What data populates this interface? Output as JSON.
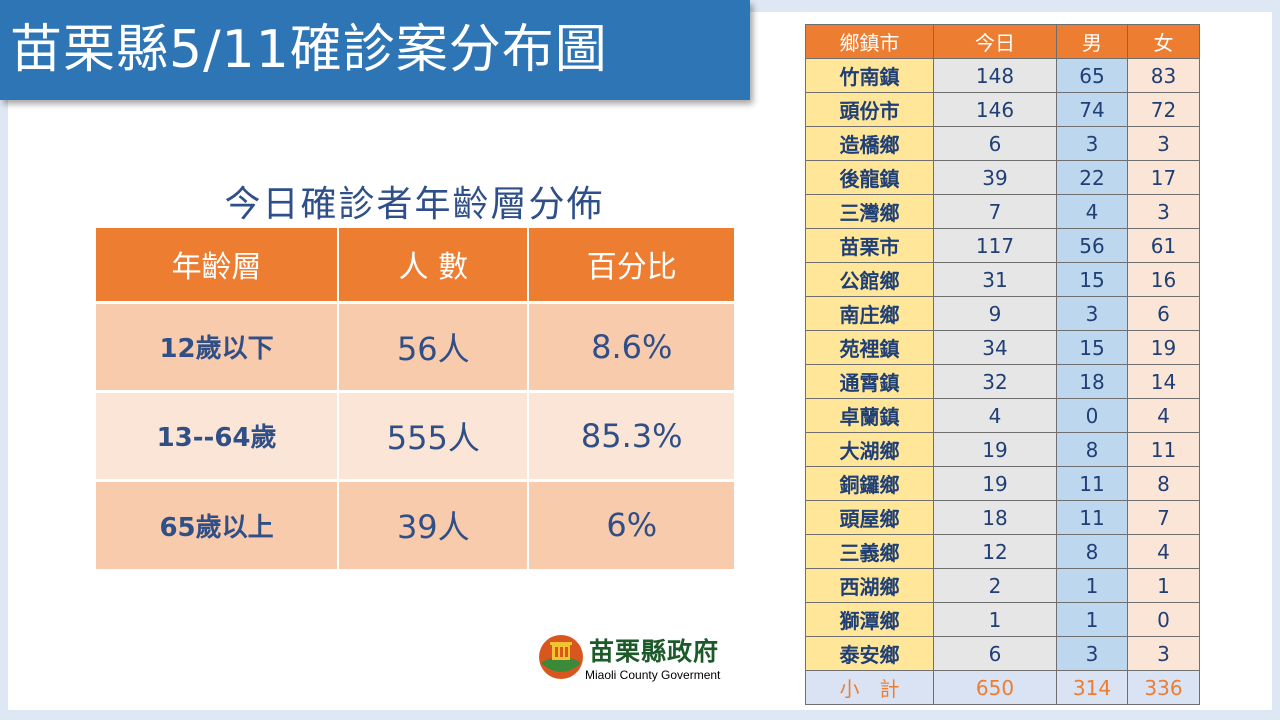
{
  "title": "苗栗縣5/11確診案分布圖",
  "age_section": {
    "heading": "今日確診者年齡層分佈",
    "headers": [
      "年齡層",
      "人 數",
      "百分比"
    ],
    "rows": [
      {
        "group": "12歲以下",
        "count": "56人",
        "percent": "8.6%"
      },
      {
        "group": "13--64歲",
        "count": "555人",
        "percent": "85.3%"
      },
      {
        "group": "65歲以上",
        "count": "39人",
        "percent": "6%"
      }
    ]
  },
  "logo": {
    "name_cn": "苗栗縣政府",
    "name_en": "Miaoli County Goverment"
  },
  "town_table": {
    "headers": [
      "鄉鎮市",
      "今日",
      "男",
      "女"
    ],
    "rows": [
      {
        "town": "竹南鎮",
        "today": "148",
        "male": "65",
        "female": "83"
      },
      {
        "town": "頭份市",
        "today": "146",
        "male": "74",
        "female": "72"
      },
      {
        "town": "造橋鄉",
        "today": "6",
        "male": "3",
        "female": "3"
      },
      {
        "town": "後龍鎮",
        "today": "39",
        "male": "22",
        "female": "17"
      },
      {
        "town": "三灣鄉",
        "today": "7",
        "male": "4",
        "female": "3"
      },
      {
        "town": "苗栗市",
        "today": "117",
        "male": "56",
        "female": "61"
      },
      {
        "town": "公館鄉",
        "today": "31",
        "male": "15",
        "female": "16"
      },
      {
        "town": "南庄鄉",
        "today": "9",
        "male": "3",
        "female": "6"
      },
      {
        "town": "苑裡鎮",
        "today": "34",
        "male": "15",
        "female": "19"
      },
      {
        "town": "通霄鎮",
        "today": "32",
        "male": "18",
        "female": "14"
      },
      {
        "town": "卓蘭鎮",
        "today": "4",
        "male": "0",
        "female": "4"
      },
      {
        "town": "大湖鄉",
        "today": "19",
        "male": "8",
        "female": "11"
      },
      {
        "town": "銅鑼鄉",
        "today": "19",
        "male": "11",
        "female": "8"
      },
      {
        "town": "頭屋鄉",
        "today": "18",
        "male": "11",
        "female": "7"
      },
      {
        "town": "三義鄉",
        "today": "12",
        "male": "8",
        "female": "4"
      },
      {
        "town": "西湖鄉",
        "today": "2",
        "male": "1",
        "female": "1"
      },
      {
        "town": "獅潭鄉",
        "today": "1",
        "male": "1",
        "female": "0"
      },
      {
        "town": "泰安鄉",
        "today": "6",
        "male": "3",
        "female": "3"
      }
    ],
    "total": {
      "town": "小計",
      "today": "650",
      "male": "314",
      "female": "336"
    }
  },
  "colors": {
    "title_bg": "#2e75b6",
    "header_orange": "#ed7d31",
    "text_blue": "#2f4f86",
    "town_yellow": "#ffe699",
    "male_blue": "#bdd7ee",
    "female_peach": "#fbe5d6"
  }
}
